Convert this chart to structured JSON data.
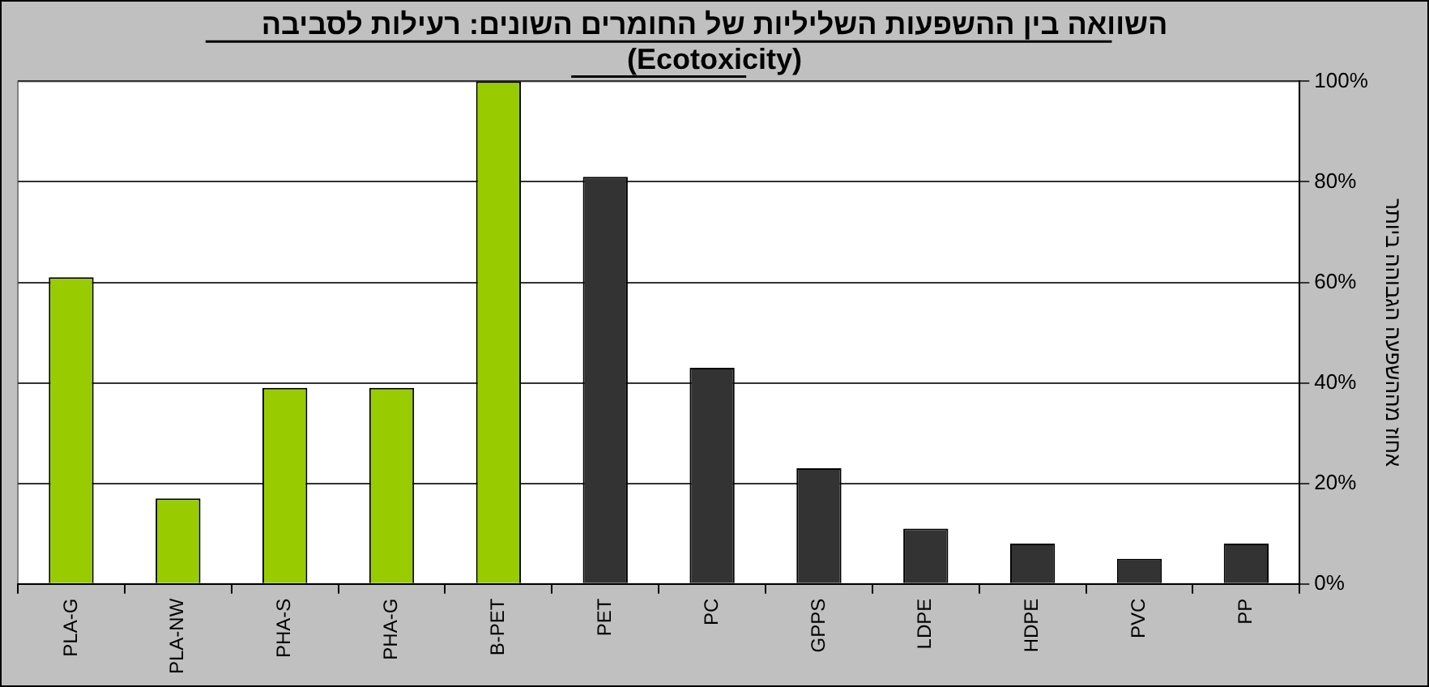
{
  "chart_data": {
    "type": "bar",
    "title": "השוואה בין ההשפעות השליליות של החומרים השונים: רעילות לסביבה (Ecotoxicity)",
    "ylabel": "אחוז מההשפעה הגבוהה ביותר",
    "categories": [
      "PLA-G",
      "PLA-NW",
      "PHA-S",
      "PHA-G",
      "B-PET",
      "PET",
      "PC",
      "GPPS",
      "LDPE",
      "HDPE",
      "PVC",
      "PP"
    ],
    "values": [
      61,
      17,
      39,
      39,
      100,
      81,
      43,
      23,
      11,
      8,
      5,
      8
    ],
    "colors": [
      "#99cc00",
      "#99cc00",
      "#99cc00",
      "#99cc00",
      "#99cc00",
      "#333333",
      "#333333",
      "#333333",
      "#333333",
      "#333333",
      "#333333",
      "#333333"
    ],
    "ylim": [
      0,
      100
    ],
    "yticks": [
      {
        "value": 0,
        "label": "0%"
      },
      {
        "value": 20,
        "label": "20%"
      },
      {
        "value": 40,
        "label": "40%"
      },
      {
        "value": 60,
        "label": "60%"
      },
      {
        "value": 80,
        "label": "80%"
      },
      {
        "value": 100,
        "label": "100%"
      }
    ],
    "grid": "y",
    "legend": false
  }
}
